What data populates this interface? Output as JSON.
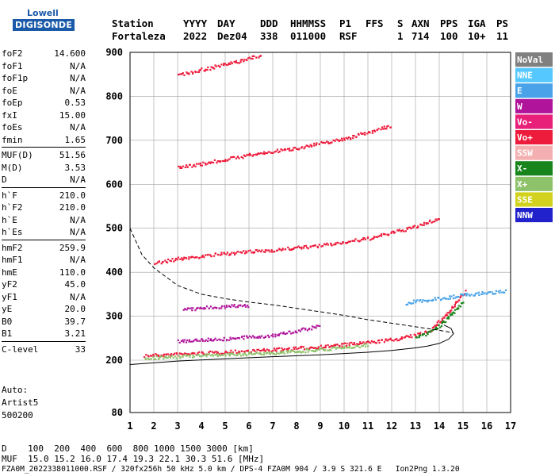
{
  "logo": {
    "line1": "Lowell",
    "line2": "DIGISONDE"
  },
  "header": {
    "labels": [
      "Station",
      "YYYY",
      "DAY",
      "DDD",
      "HHMMSS",
      "P1",
      "FFS",
      "S",
      "AXN",
      "PPS",
      "IGA",
      "PS"
    ],
    "values": [
      "Fortaleza",
      "2022",
      "Dez04",
      "338",
      "011000",
      "RSF",
      "",
      "1",
      "714",
      "100",
      "10+",
      "11"
    ]
  },
  "params": [
    {
      "k": "foF2",
      "v": "14.600"
    },
    {
      "k": "foF1",
      "v": "N/A"
    },
    {
      "k": "foF1p",
      "v": "N/A"
    },
    {
      "k": "foE",
      "v": "N/A"
    },
    {
      "k": "foEp",
      "v": "0.53"
    },
    {
      "k": "fxI",
      "v": "15.00"
    },
    {
      "k": "foEs",
      "v": "N/A"
    },
    {
      "k": "fmin",
      "v": "1.65"
    },
    {
      "sep": true
    },
    {
      "k": "MUF(D)",
      "v": "51.56"
    },
    {
      "k": "M(D)",
      "v": "3.53"
    },
    {
      "k": "D",
      "v": "N/A"
    },
    {
      "sep": true
    },
    {
      "k": "h`F",
      "v": "210.0"
    },
    {
      "k": "h`F2",
      "v": "210.0"
    },
    {
      "k": "h`E",
      "v": "N/A"
    },
    {
      "k": "h`Es",
      "v": "N/A"
    },
    {
      "sep": true
    },
    {
      "k": "hmF2",
      "v": "259.9"
    },
    {
      "k": "hmF1",
      "v": "N/A"
    },
    {
      "k": "hmE",
      "v": "110.0"
    },
    {
      "k": "yF2",
      "v": "45.0"
    },
    {
      "k": "yF1",
      "v": "N/A"
    },
    {
      "k": "yE",
      "v": "20.0"
    },
    {
      "k": "B0",
      "v": "39.7"
    },
    {
      "k": "B1",
      "v": "3.21"
    },
    {
      "sep": true
    },
    {
      "k": "C-level",
      "v": "33"
    }
  ],
  "auto": [
    "Auto:",
    "Artist5",
    "500200"
  ],
  "footer": {
    "d_line": "D    100  200  400  600  800 1000 1500 3000 [km]",
    "muf_line": "MUF  15.0 15.2 16.0 17.4 19.3 22.1 30.3 51.6 [MHz]",
    "file_line": "FZA0M_2022338011000.RSF / 320fx256h 50 kHz 5.0 km / DPS-4 FZA0M 904 / 3.9 S 321.6 E   Ion2Png 1.3.20"
  },
  "legend": [
    {
      "label": "NoVal",
      "color": "#808080"
    },
    {
      "label": "NNE",
      "color": "#55c8ff"
    },
    {
      "label": "E",
      "color": "#4aa3e8"
    },
    {
      "label": "W",
      "color": "#b0149a"
    },
    {
      "label": "Vo-",
      "color": "#e8207a"
    },
    {
      "label": "Vo+",
      "color": "#ee1c3c"
    },
    {
      "label": "SSW",
      "color": "#f4b0b0"
    },
    {
      "label": "X-",
      "color": "#18841c"
    },
    {
      "label": "X+",
      "color": "#8ec26a"
    },
    {
      "label": "SSE",
      "color": "#d2d21e"
    },
    {
      "label": "NNW",
      "color": "#2222cc"
    }
  ],
  "chart_data": {
    "type": "scatter",
    "xlim": [
      1,
      17
    ],
    "ylim": [
      80,
      900
    ],
    "x_ticks": [
      1,
      2,
      3,
      4,
      5,
      6,
      7,
      8,
      9,
      10,
      11,
      12,
      13,
      14,
      15,
      16,
      17
    ],
    "y_ticks": [
      80,
      200,
      300,
      400,
      500,
      600,
      700,
      800,
      900
    ],
    "x_scale": "linear-in-frequency-MHz",
    "grid": true,
    "legend_position": "right",
    "traces": [
      {
        "name": "Vo+",
        "color": "#ee1c3c",
        "x": [
          1.6,
          3,
          5,
          7,
          9,
          11,
          12,
          13,
          13.6,
          14.0,
          14.4,
          14.8,
          15.1
        ],
        "y": [
          212,
          215,
          220,
          225,
          232,
          242,
          248,
          258,
          270,
          290,
          312,
          338,
          360
        ]
      },
      {
        "name": "Vo+",
        "color": "#ee1c3c",
        "x": [
          2.0,
          3,
          5,
          7,
          9,
          11,
          13,
          14
        ],
        "y": [
          422,
          432,
          444,
          452,
          462,
          478,
          505,
          525
        ]
      },
      {
        "name": "Vo+",
        "color": "#ee1c3c",
        "x": [
          3.0,
          4,
          6,
          8,
          10,
          12
        ],
        "y": [
          640,
          648,
          668,
          684,
          705,
          735
        ]
      },
      {
        "name": "Vo+",
        "color": "#ee1c3c",
        "x": [
          3.0,
          4,
          5.5,
          6.5
        ],
        "y": [
          850,
          862,
          880,
          896
        ]
      },
      {
        "name": "W",
        "color": "#b0149a",
        "x": [
          3.2,
          4,
          5,
          6
        ],
        "y": [
          316,
          320,
          324,
          326
        ]
      },
      {
        "name": "W",
        "color": "#b0149a",
        "x": [
          3.0,
          4,
          5,
          6,
          7,
          8,
          9
        ],
        "y": [
          245,
          248,
          250,
          254,
          258,
          268,
          280
        ]
      },
      {
        "name": "E",
        "color": "#4aa3e8",
        "x": [
          12.6,
          13,
          13.5,
          14,
          14.5,
          15,
          15.5,
          16,
          16.8
        ],
        "y": [
          330,
          336,
          338,
          342,
          345,
          350,
          352,
          355,
          358
        ]
      },
      {
        "name": "X-",
        "color": "#18841c",
        "x": [
          13.0,
          13.5,
          14,
          14.5,
          15
        ],
        "y": [
          252,
          262,
          280,
          305,
          335
        ]
      },
      {
        "name": "X+",
        "color": "#8ec26a",
        "x": [
          1.6,
          3,
          5,
          7,
          9,
          11
        ],
        "y": [
          206,
          210,
          214,
          218,
          226,
          236
        ]
      }
    ],
    "profile": {
      "solid": {
        "x": [
          1,
          3,
          5,
          7,
          9,
          11,
          12,
          13,
          13.5,
          14,
          14.4,
          14.6,
          14.5,
          14.2
        ],
        "y": [
          190,
          198,
          203,
          208,
          212,
          218,
          222,
          228,
          232,
          238,
          248,
          260,
          272,
          280
        ]
      },
      "dashed": {
        "x": [
          1,
          1.5,
          2,
          3,
          4,
          5,
          6,
          7,
          8,
          9,
          10,
          11,
          12,
          13,
          14,
          14.6
        ],
        "y": [
          500,
          440,
          410,
          370,
          350,
          340,
          332,
          326,
          318,
          310,
          302,
          292,
          284,
          276,
          268,
          262
        ]
      }
    }
  }
}
